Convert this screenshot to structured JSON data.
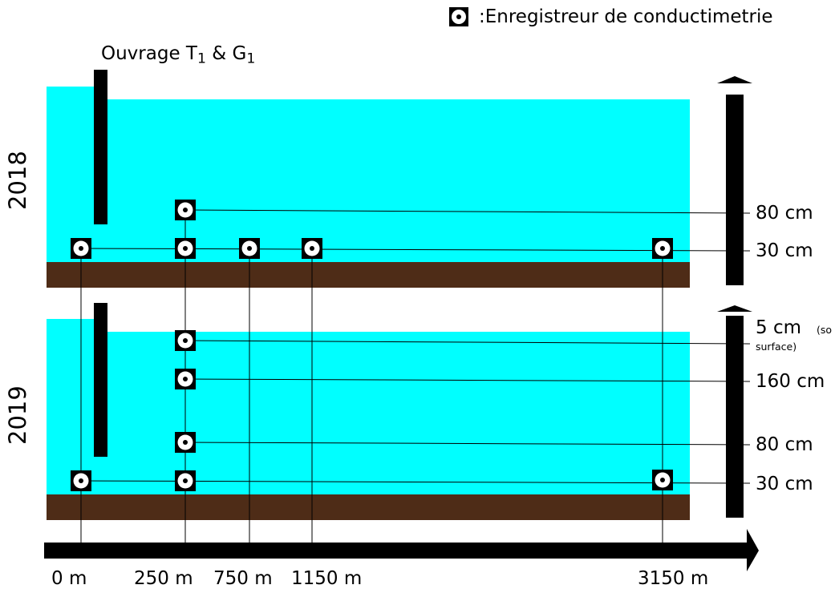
{
  "legend": {
    "label": ":Enregistreur de conductimetrie"
  },
  "structure": {
    "label": "Ouvrage T",
    "sub1": "1",
    "amp": " & G",
    "sub2": "1"
  },
  "years": [
    "2018",
    "2019"
  ],
  "depths_2018": [
    "80 cm",
    "30 cm"
  ],
  "depths_2019": {
    "d1": "5 cm",
    "d1_note_a": "(so",
    "d1_note_b": "surface)",
    "d2": "160 cm",
    "d3": "80 cm",
    "d4": "30 cm"
  },
  "distances": [
    "0 m",
    "250 m",
    "750 m",
    "1150 m",
    "3150 m"
  ],
  "colors": {
    "water": "#00ffff",
    "soil": "#4e2c17",
    "marker": "#000000",
    "background": "#ffffff"
  }
}
